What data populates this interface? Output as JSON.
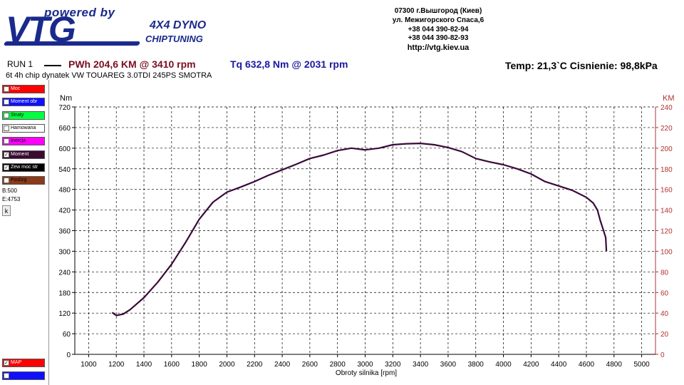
{
  "logo": {
    "powered": "powered by",
    "brand": "VTG",
    "dyno": "4X4 DYNO",
    "chip": "CHIPTUNING"
  },
  "address": {
    "line1": "07300 г.Вышгород (Киев)",
    "line2": "ул. Межигорского Спаса,6",
    "phone1": "+38 044 390-82-94",
    "phone2": "+38 044 390-82-93",
    "url": "http://vtg.kiev.ua"
  },
  "header": {
    "run": "RUN 1",
    "pwh": "PWh  204,6 KM @ 3410 rpm",
    "tq": "Tq 632,8 Nm @ 2031 rpm",
    "conditions": "Temp: 21,3`C   Cisnienie: 98,8kPa",
    "subtitle": "6t 4h chip dynatek VW TOUAREG 3.0TDI 245PS SMOTRA"
  },
  "legend": [
    {
      "label": "Moc",
      "color": "#ff0000",
      "text_color": "#ffffff",
      "checked": false
    },
    {
      "label": "Moment obr",
      "color": "#1010ff",
      "text_color": "#ffffff",
      "checked": false
    },
    {
      "label": "Straty",
      "color": "#00ff40",
      "text_color": "#000000",
      "checked": false
    },
    {
      "label": "Hamowana",
      "color": "#ffffff",
      "text_color": "#000000",
      "checked": false
    },
    {
      "label": "Inercja",
      "color": "#ff00ff",
      "text_color": "#000000",
      "checked": false
    },
    {
      "label": "Moment",
      "color": "#3a0a30",
      "text_color": "#ffffff",
      "checked": true
    },
    {
      "label": "Zew moc str",
      "color": "#000000",
      "text_color": "#ffffff",
      "checked": true
    },
    {
      "label": "Poslizg",
      "color": "#8b3a1a",
      "text_color": "#000000",
      "checked": false
    }
  ],
  "legend_bottom": [
    {
      "label": "MAP",
      "color": "#ff0000",
      "text_color": "#ffffff",
      "checked": true
    },
    {
      "label": "",
      "color": "#1010ff",
      "text_color": "#ffffff",
      "checked": false
    }
  ],
  "side": {
    "b": "B:500",
    "e": "E:4753",
    "k": "k"
  },
  "colors": {
    "curve": "#3a0a3a",
    "grid": "#000000",
    "axis_right": "#b03030"
  },
  "chart_data": {
    "type": "line",
    "xlabel": "Obroty silnika [rpm]",
    "ylabel_left": "Nm",
    "ylabel_right": "KM",
    "xlim": [
      900,
      5100
    ],
    "ylim_left": [
      0,
      720
    ],
    "ylim_right": [
      0,
      240
    ],
    "x_ticks": [
      1000,
      1200,
      1400,
      1600,
      1800,
      2000,
      2200,
      2400,
      2600,
      2800,
      3000,
      3200,
      3400,
      3600,
      3800,
      4000,
      4200,
      4400,
      4600,
      4800,
      5000
    ],
    "y_ticks_left": [
      0,
      60,
      120,
      180,
      240,
      300,
      360,
      420,
      480,
      540,
      600,
      660,
      720
    ],
    "y_ticks_right": [
      0,
      20,
      40,
      60,
      80,
      100,
      120,
      140,
      160,
      180,
      200,
      220,
      240
    ],
    "grid": true,
    "series": [
      {
        "axis": "left",
        "x": [
          1170,
          1200,
          1250,
          1300,
          1400,
          1500,
          1600,
          1700,
          1800,
          1900,
          2000,
          2100,
          2200,
          2300,
          2400,
          2500,
          2600,
          2700,
          2800,
          2900,
          3000,
          3100,
          3200,
          3300,
          3400,
          3500,
          3600,
          3700,
          3800,
          3900,
          4000,
          4100,
          4200,
          4300,
          4400,
          4500,
          4600,
          4650,
          4680,
          4700,
          4720,
          4740,
          4745
        ],
        "y": [
          122,
          113,
          117,
          130,
          165,
          210,
          262,
          325,
          393,
          443,
          472,
          487,
          503,
          521,
          537,
          553,
          570,
          580,
          593,
          600,
          595,
          600,
          610,
          613,
          614,
          610,
          602,
          590,
          570,
          560,
          552,
          540,
          525,
          503,
          490,
          477,
          457,
          440,
          420,
          390,
          365,
          340,
          300
        ]
      }
    ]
  }
}
